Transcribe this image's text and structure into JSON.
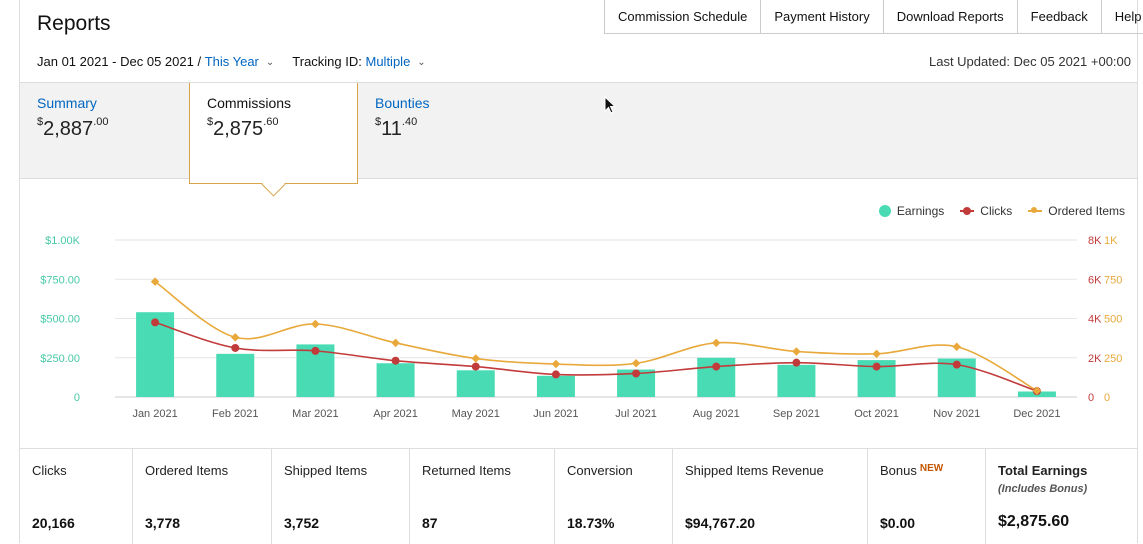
{
  "header": {
    "title": "Reports",
    "nav": [
      "Commission Schedule",
      "Payment History",
      "Download Reports",
      "Feedback",
      "Help"
    ]
  },
  "filters": {
    "date_range": "Jan 01 2021 - Dec 05 2021 /",
    "period": "This Year",
    "tracking_label": "Tracking ID:",
    "tracking_value": "Multiple",
    "last_updated": "Last Updated: Dec 05 2021 +00:00"
  },
  "tabs": [
    {
      "label": "Summary",
      "currency": "$",
      "whole": "2,887",
      "cents": ".00"
    },
    {
      "label": "Commissions",
      "currency": "$",
      "whole": "2,875",
      "cents": ".60"
    },
    {
      "label": "Bounties",
      "currency": "$",
      "whole": "11",
      "cents": ".40"
    }
  ],
  "legend": {
    "earnings": "Earnings",
    "clicks": "Clicks",
    "ordered": "Ordered Items"
  },
  "colors": {
    "earnings": "#48dbb4",
    "clicks": "#c23b3b",
    "ordered": "#e8a93a",
    "link": "#0066c0",
    "active_border": "#d8a44b"
  },
  "chart_data": {
    "type": "bar",
    "categories": [
      "Jan 2021",
      "Feb 2021",
      "Mar 2021",
      "Apr 2021",
      "May 2021",
      "Jun 2021",
      "Jul 2021",
      "Aug 2021",
      "Sep 2021",
      "Oct 2021",
      "Nov 2021",
      "Dec 2021"
    ],
    "series": [
      {
        "name": "Earnings",
        "type": "bar",
        "axis": "left",
        "values": [
          540,
          275,
          335,
          215,
          170,
          135,
          175,
          250,
          205,
          235,
          245,
          35
        ]
      },
      {
        "name": "Clicks",
        "type": "line",
        "axis": "right-inner",
        "values": [
          3800,
          2500,
          2350,
          1850,
          1550,
          1150,
          1200,
          1550,
          1750,
          1550,
          1650,
          300
        ]
      },
      {
        "name": "Ordered Items",
        "type": "line",
        "axis": "right-outer",
        "values": [
          735,
          380,
          465,
          345,
          245,
          210,
          215,
          345,
          290,
          275,
          320,
          40
        ]
      }
    ],
    "y_left": {
      "min": 0,
      "max": 1000,
      "ticks": [
        "0",
        "$250.00",
        "$500.00",
        "$750.00",
        "$1.00K"
      ]
    },
    "y_right_inner": {
      "min": 0,
      "max": 8000,
      "ticks": [
        "0",
        "2K",
        "4K",
        "6K",
        "8K"
      ]
    },
    "y_right_outer": {
      "min": 0,
      "max": 1000,
      "ticks": [
        "0",
        "250",
        "500",
        "750",
        "1K"
      ]
    },
    "grid": true,
    "legend_position": "top-right"
  },
  "stats": [
    {
      "label": "Clicks",
      "value": "20,166"
    },
    {
      "label": "Ordered Items",
      "value": "3,778"
    },
    {
      "label": "Shipped Items",
      "value": "3,752"
    },
    {
      "label": "Returned Items",
      "value": "87"
    },
    {
      "label": "Conversion",
      "value": "18.73%"
    },
    {
      "label": "Shipped Items Revenue",
      "value": "$94,767.20"
    },
    {
      "label": "Bonus",
      "badge": "NEW",
      "value": "$0.00"
    },
    {
      "label": "Total Earnings",
      "sub": "(Includes Bonus)",
      "value": "$2,875.60"
    }
  ]
}
